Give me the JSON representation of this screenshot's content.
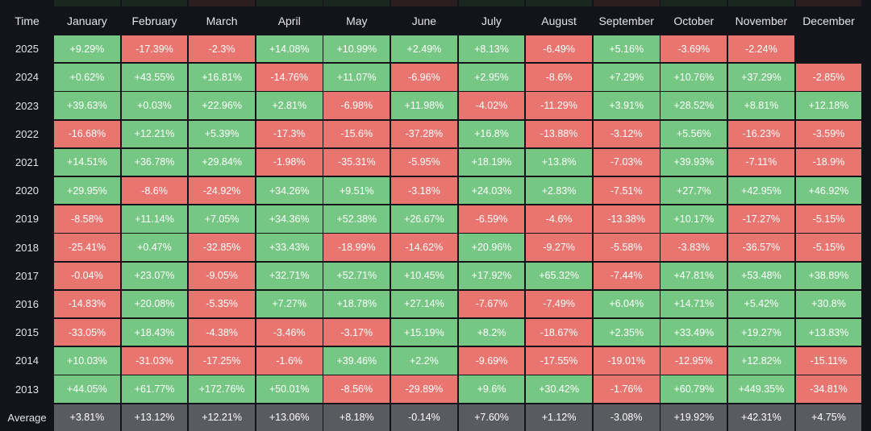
{
  "colors": {
    "positive": "#76c783",
    "negative": "#e8756f",
    "average": "#5a5b61",
    "empty": "#131419"
  },
  "chart_data": {
    "type": "heatmap",
    "corner_label": "Time",
    "columns": [
      "January",
      "February",
      "March",
      "April",
      "May",
      "June",
      "July",
      "August",
      "September",
      "October",
      "November",
      "December"
    ],
    "rows": [
      {
        "label": "2025",
        "values": [
          "+9.29%",
          "-17.39%",
          "-2.3%",
          "+14.08%",
          "+10.99%",
          "+2.49%",
          "+8.13%",
          "-6.49%",
          "+5.16%",
          "-3.69%",
          "-2.24%",
          ""
        ]
      },
      {
        "label": "2024",
        "values": [
          "+0.62%",
          "+43.55%",
          "+16.81%",
          "-14.76%",
          "+11.07%",
          "-6.96%",
          "+2.95%",
          "-8.6%",
          "+7.29%",
          "+10.76%",
          "+37.29%",
          "-2.85%"
        ]
      },
      {
        "label": "2023",
        "values": [
          "+39.63%",
          "+0.03%",
          "+22.96%",
          "+2.81%",
          "-6.98%",
          "+11.98%",
          "-4.02%",
          "-11.29%",
          "+3.91%",
          "+28.52%",
          "+8.81%",
          "+12.18%"
        ]
      },
      {
        "label": "2022",
        "values": [
          "-16.68%",
          "+12.21%",
          "+5.39%",
          "-17.3%",
          "-15.6%",
          "-37.28%",
          "+16.8%",
          "-13.88%",
          "-3.12%",
          "+5.56%",
          "-16.23%",
          "-3.59%"
        ]
      },
      {
        "label": "2021",
        "values": [
          "+14.51%",
          "+36.78%",
          "+29.84%",
          "-1.98%",
          "-35.31%",
          "-5.95%",
          "+18.19%",
          "+13.8%",
          "-7.03%",
          "+39.93%",
          "-7.11%",
          "-18.9%"
        ]
      },
      {
        "label": "2020",
        "values": [
          "+29.95%",
          "-8.6%",
          "-24.92%",
          "+34.26%",
          "+9.51%",
          "-3.18%",
          "+24.03%",
          "+2.83%",
          "-7.51%",
          "+27.7%",
          "+42.95%",
          "+46.92%"
        ]
      },
      {
        "label": "2019",
        "values": [
          "-8.58%",
          "+11.14%",
          "+7.05%",
          "+34.36%",
          "+52.38%",
          "+26.67%",
          "-6.59%",
          "-4.6%",
          "-13.38%",
          "+10.17%",
          "-17.27%",
          "-5.15%"
        ]
      },
      {
        "label": "2018",
        "values": [
          "-25.41%",
          "+0.47%",
          "-32.85%",
          "+33.43%",
          "-18.99%",
          "-14.62%",
          "+20.96%",
          "-9.27%",
          "-5.58%",
          "-3.83%",
          "-36.57%",
          "-5.15%"
        ]
      },
      {
        "label": "2017",
        "values": [
          "-0.04%",
          "+23.07%",
          "-9.05%",
          "+32.71%",
          "+52.71%",
          "+10.45%",
          "+17.92%",
          "+65.32%",
          "-7.44%",
          "+47.81%",
          "+53.48%",
          "+38.89%"
        ]
      },
      {
        "label": "2016",
        "values": [
          "-14.83%",
          "+20.08%",
          "-5.35%",
          "+7.27%",
          "+18.78%",
          "+27.14%",
          "-7.67%",
          "-7.49%",
          "+6.04%",
          "+14.71%",
          "+5.42%",
          "+30.8%"
        ]
      },
      {
        "label": "2015",
        "values": [
          "-33.05%",
          "+18.43%",
          "-4.38%",
          "-3.46%",
          "-3.17%",
          "+15.19%",
          "+8.2%",
          "-18.67%",
          "+2.35%",
          "+33.49%",
          "+19.27%",
          "+13.83%"
        ]
      },
      {
        "label": "2014",
        "values": [
          "+10.03%",
          "-31.03%",
          "-17.25%",
          "-1.6%",
          "+39.46%",
          "+2.2%",
          "-9.69%",
          "-17.55%",
          "-19.01%",
          "-12.95%",
          "+12.82%",
          "-15.11%"
        ]
      },
      {
        "label": "2013",
        "values": [
          "+44.05%",
          "+61.77%",
          "+172.76%",
          "+50.01%",
          "-8.56%",
          "-29.89%",
          "+9.6%",
          "+30.42%",
          "-1.76%",
          "+60.79%",
          "+449.35%",
          "-34.81%"
        ]
      }
    ],
    "average": {
      "label": "Average",
      "values": [
        "+3.81%",
        "+13.12%",
        "+12.21%",
        "+13.06%",
        "+8.18%",
        "-0.14%",
        "+7.60%",
        "+1.12%",
        "-3.08%",
        "+19.92%",
        "+42.31%",
        "+4.75%"
      ]
    }
  }
}
